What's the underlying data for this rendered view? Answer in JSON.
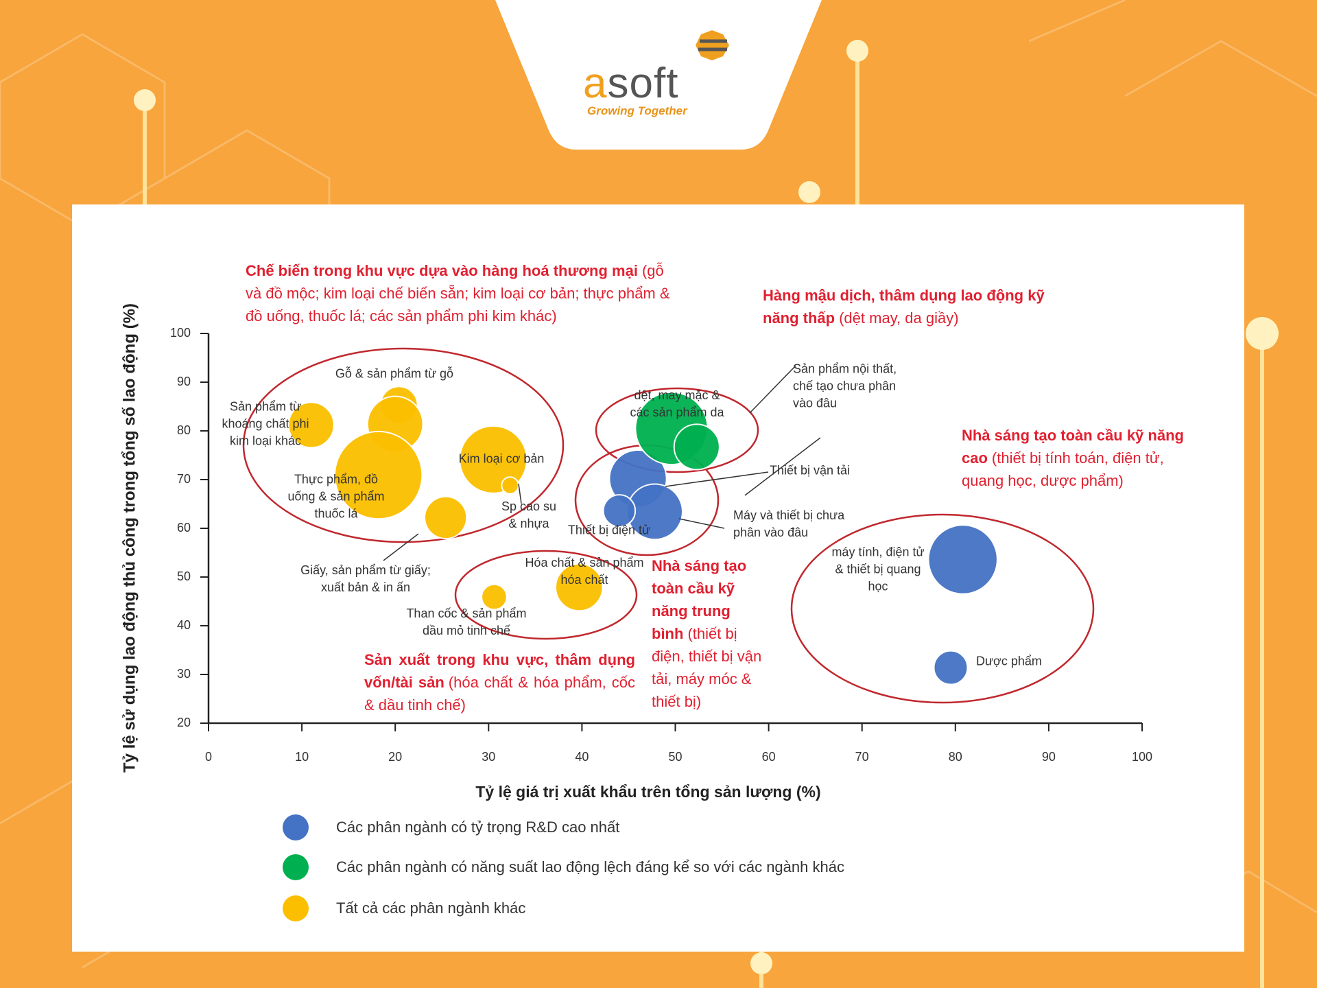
{
  "header": {
    "brand": "asoft",
    "tagline": "Growing Together"
  },
  "chart_data": {
    "type": "bubble",
    "x_label": "Tỷ lệ giá trị xuất khẩu trên tổng sản lượng (%)",
    "y_label": "Tỷ lệ sử dụng lao động thủ công trong tổng số lao động (%)",
    "xlim": [
      0,
      100
    ],
    "xticks": [
      0,
      10,
      20,
      30,
      40,
      50,
      60,
      70,
      80,
      90,
      100
    ],
    "ylim": [
      20,
      100
    ],
    "yticks": [
      20,
      30,
      40,
      50,
      60,
      70,
      80,
      90,
      100
    ],
    "series": [
      {
        "name": "Các phân ngành có tỷ trọng R&D cao nhất",
        "color": "#4472c4",
        "x": [
          46,
          47.8,
          44,
          80.8,
          79.5
        ],
        "y": [
          70.2,
          63.4,
          63.6,
          53.6,
          31.4
        ],
        "sizes": [
          34,
          33,
          19,
          41,
          20
        ],
        "labels": [
          "Thiết bị vận tải",
          "Máy và thiết bị chưa phân vào đâu",
          "Thiết bị điện tử",
          "máy tính, điện tử & thiết bị quang học",
          "Dược phẩm"
        ]
      },
      {
        "name": "Các phân ngành có năng suất lao động lệch đáng kể so với các ngành khác",
        "color": "#00b050",
        "x": [
          49.6,
          52.3
        ],
        "y": [
          80.5,
          76.7
        ],
        "sizes": [
          43,
          27
        ],
        "labels": [
          "dệt, may mặc & các sản phẩm da",
          "Sản phẩm nội thất, chế tạo chưa phân vào đâu"
        ]
      },
      {
        "name": "Tất cả các phân ngành khác",
        "color": "#fbbf00",
        "x": [
          11,
          20.4,
          20,
          18.2,
          30.5,
          32.3,
          25.4,
          30.6,
          39.7
        ],
        "y": [
          81.2,
          85.3,
          81.4,
          70.9,
          74.1,
          68.8,
          62.2,
          45.9,
          47.9
        ],
        "sizes": [
          27,
          22,
          33,
          52,
          40,
          10,
          25,
          15,
          28
        ],
        "labels": [
          "Sản phẩm từ khoáng chất phi kim loại khác",
          "Gỗ & sản phẩm từ gỗ",
          null,
          "Thực phẩm, đồ uống & sản phẩm thuốc lá",
          "Kim loại cơ bản",
          "Sp cao su & nhựa",
          "Giấy, sản phẩm từ giấy; xuất bản & in ấn",
          "Than cốc & sản phẩm dầu mỏ tinh chế",
          "Hóa chất & sản phẩm hóa chất"
        ]
      }
    ],
    "annotations": [
      {
        "title": "Chế biến trong khu vực dựa vào hàng hoá thương mại",
        "detail": "(gỗ và đồ mộc; kim loại chế biến sẵn; kim loại cơ bản; thực phẩm & đồ uống, thuốc lá; các sản phẩm phi kim khác)"
      },
      {
        "title": "Hàng mậu dịch, thâm dụng lao động kỹ năng thấp",
        "detail": "(dệt may, da giầy)"
      },
      {
        "title": "Nhà sáng tạo toàn cầu kỹ năng cao",
        "detail": "(thiết bị tính toán, điện tử, quang học, dược phẩm)"
      },
      {
        "title": "Nhà sáng tạo toàn cầu kỹ năng trung bình",
        "detail": "(thiết bị điện, thiết bị vận tải, máy móc & thiết bị)"
      },
      {
        "title": "Sản xuất trong khu vực, thâm dụng vốn/tài sản",
        "detail": "(hóa chất & hóa phẩm, cốc & dầu tinh chế)"
      }
    ]
  }
}
